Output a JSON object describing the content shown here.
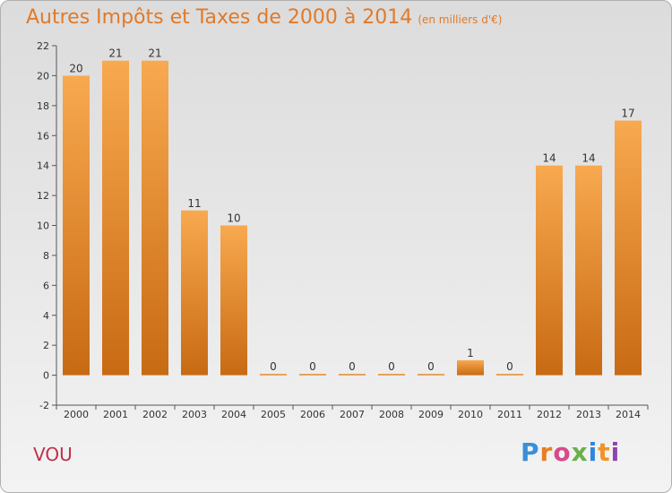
{
  "title": "Autres Impôts et Taxes de 2000 à 2014",
  "subtitle": "(en milliers d'€)",
  "commune": "VOU",
  "logo": "Proxiti",
  "colors": {
    "title": "#e07a2a",
    "bar_light": "#f8a94f",
    "bar_dark": "#c86a14",
    "commune": "#c0304a"
  },
  "chart_data": {
    "type": "bar",
    "title": "Autres Impôts et Taxes de 2000 à 2014",
    "subtitle": "(en milliers d'€)",
    "categories": [
      "2000",
      "2001",
      "2002",
      "2003",
      "2004",
      "2005",
      "2006",
      "2007",
      "2008",
      "2009",
      "2010",
      "2011",
      "2012",
      "2013",
      "2014"
    ],
    "values": [
      20,
      21,
      21,
      11,
      10,
      0,
      0,
      0,
      0,
      0,
      1,
      0,
      14,
      14,
      17
    ],
    "data_labels": [
      "20",
      "21",
      "21",
      "11",
      "10",
      "0",
      "0",
      "0",
      "0",
      "0",
      "1",
      "0",
      "14",
      "14",
      "17"
    ],
    "yticks": [
      "-2",
      "0",
      "2",
      "4",
      "6",
      "8",
      "10",
      "12",
      "14",
      "16",
      "18",
      "20",
      "22"
    ],
    "ylim": [
      -2,
      22
    ],
    "grid": false,
    "legend": "none"
  }
}
